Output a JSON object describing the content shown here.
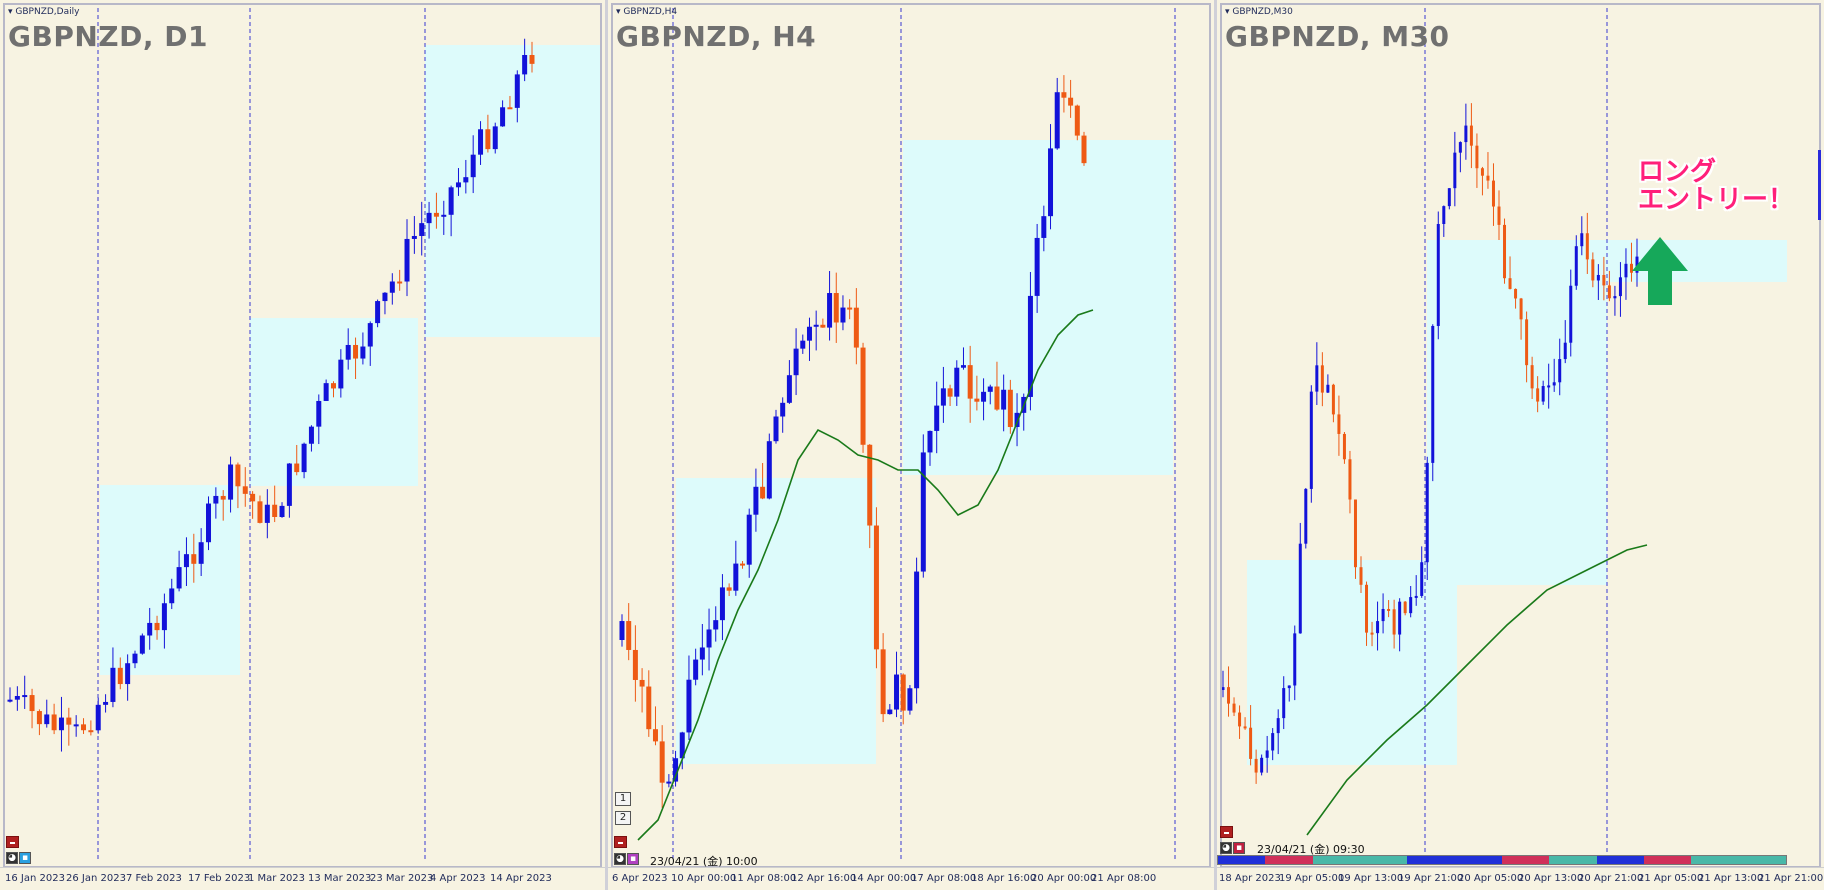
{
  "colors": {
    "background": "#f7f3e2",
    "zone": "#ddfbfb",
    "bull": "#1212d9",
    "bear": "#ee5a14",
    "ma": "#1a7a1a",
    "annotation": "#ff1f7a",
    "arrow": "#16a85a"
  },
  "panels": [
    {
      "id": "d1",
      "mini_title": "GBPNZD,Daily",
      "big_title": "GBPNZD, D1",
      "time_labels": [
        "16 Jan 2023",
        "26 Jan 2023",
        "7 Feb 2023",
        "17 Feb 2023",
        "1 Mar 2023",
        "13 Mar 2023",
        "23 Mar 2023",
        "4 Apr 2023",
        "14 Apr 2023"
      ]
    },
    {
      "id": "h4",
      "mini_title": "GBPNZD,H4",
      "big_title": "GBPNZD, H4",
      "datetime": "23/04/21 (金) 10:00",
      "buttons": [
        "1",
        "2"
      ],
      "time_labels": [
        "6 Apr 2023",
        "10 Apr 00:00",
        "11 Apr 08:00",
        "12 Apr 16:00",
        "14 Apr 00:00",
        "17 Apr 08:00",
        "18 Apr 16:00",
        "20 Apr 00:00",
        "21 Apr 08:00"
      ]
    },
    {
      "id": "m30",
      "mini_title": "GBPNZD,M30",
      "big_title": "GBPNZD, M30",
      "datetime": "23/04/21 (金) 09:30",
      "time_labels": [
        "18 Apr 2023",
        "19 Apr 05:00",
        "19 Apr 13:00",
        "19 Apr 21:00",
        "20 Apr 05:00",
        "20 Apr 13:00",
        "20 Apr 21:00",
        "21 Apr 05:00",
        "21 Apr 13:00",
        "21 Apr 21:00"
      ]
    }
  ],
  "annotation": {
    "line1": "ロング",
    "line2": "エントリー！",
    "arrow": "up-arrow-icon"
  }
}
